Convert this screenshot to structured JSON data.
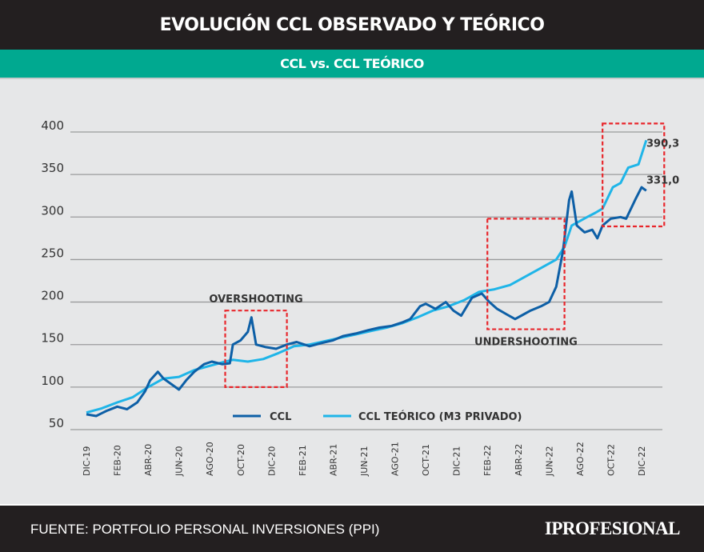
{
  "header": {
    "title": "EVOLUCIÓN CCL OBSERVADO Y TEÓRICO",
    "subtitle": "CCL vs. CCL TEÓRICO"
  },
  "footer": {
    "source": "FUENTE: PORTFOLIO PERSONAL INVERSIONES (PPI)",
    "logo": "IPROFESIONAL"
  },
  "chart_data": {
    "type": "line",
    "title": "CCL vs. CCL TEÓRICO",
    "xlabel": "",
    "ylabel": "",
    "ylim": [
      50,
      400
    ],
    "yticks": [
      "400",
      "350",
      "300",
      "250",
      "200",
      "150",
      "100",
      "50"
    ],
    "xticks": [
      "DIC-19",
      "FEB-20",
      "ABR-20",
      "JUN-20",
      "AGO-20",
      "OCT-20",
      "DIC-20",
      "FEB-21",
      "ABR-21",
      "JUN-21",
      "AGO-21",
      "OCT-21",
      "DIC-21",
      "FEB-22",
      "ABR-22",
      "JUN-22",
      "AGO-22",
      "OCT-22",
      "DIC-22"
    ],
    "xrange": [
      "2019-12",
      "2022-12"
    ],
    "grid": true,
    "legend": "bottom-center",
    "series": [
      {
        "name": "CCL",
        "color": "#0d5fa6",
        "x": [
          "2019-12-01",
          "2019-12-20",
          "2020-01-10",
          "2020-02-01",
          "2020-02-20",
          "2020-03-10",
          "2020-03-25",
          "2020-04-05",
          "2020-04-20",
          "2020-05-01",
          "2020-05-15",
          "2020-06-01",
          "2020-06-15",
          "2020-07-01",
          "2020-07-20",
          "2020-08-05",
          "2020-08-25",
          "2020-09-10",
          "2020-09-16",
          "2020-10-01",
          "2020-10-15",
          "2020-10-22",
          "2020-11-01",
          "2020-11-20",
          "2020-12-10",
          "2021-01-01",
          "2021-01-20",
          "2021-02-15",
          "2021-03-10",
          "2021-04-01",
          "2021-04-20",
          "2021-05-15",
          "2021-06-10",
          "2021-07-01",
          "2021-07-25",
          "2021-08-15",
          "2021-09-01",
          "2021-09-20",
          "2021-10-01",
          "2021-10-20",
          "2021-11-10",
          "2021-11-25",
          "2021-12-10",
          "2022-01-01",
          "2022-01-20",
          "2022-02-05",
          "2022-02-20",
          "2022-03-10",
          "2022-03-25",
          "2022-04-10",
          "2022-04-25",
          "2022-05-15",
          "2022-06-01",
          "2022-06-15",
          "2022-06-28",
          "2022-07-10",
          "2022-07-15",
          "2022-07-25",
          "2022-08-10",
          "2022-08-25",
          "2022-09-05",
          "2022-09-15",
          "2022-10-01",
          "2022-10-20",
          "2022-11-01",
          "2022-11-20",
          "2022-12-01",
          "2022-12-10"
        ],
        "values": [
          68,
          66,
          72,
          77,
          74,
          82,
          95,
          108,
          118,
          110,
          104,
          97,
          108,
          118,
          127,
          130,
          127,
          128,
          150,
          155,
          165,
          182,
          150,
          147,
          145,
          150,
          153,
          148,
          152,
          155,
          160,
          163,
          167,
          170,
          172,
          176,
          180,
          195,
          198,
          192,
          200,
          190,
          184,
          205,
          210,
          200,
          192,
          185,
          180,
          185,
          190,
          195,
          200,
          218,
          260,
          320,
          330,
          290,
          282,
          285,
          275,
          290,
          298,
          300,
          298,
          322,
          335,
          331
        ]
      },
      {
        "name": "CCL TEÓRICO (M3 PRIVADO)",
        "color": "#1fb5e8",
        "x": [
          "2019-12-01",
          "2020-01-01",
          "2020-02-01",
          "2020-03-01",
          "2020-04-01",
          "2020-05-01",
          "2020-06-01",
          "2020-07-01",
          "2020-08-01",
          "2020-09-01",
          "2020-09-16",
          "2020-10-15",
          "2020-11-15",
          "2020-12-15",
          "2021-01-15",
          "2021-02-15",
          "2021-03-15",
          "2021-04-15",
          "2021-05-15",
          "2021-06-15",
          "2021-07-15",
          "2021-08-15",
          "2021-09-15",
          "2021-10-15",
          "2021-11-15",
          "2021-12-15",
          "2022-01-15",
          "2022-02-15",
          "2022-03-15",
          "2022-04-15",
          "2022-05-15",
          "2022-06-15",
          "2022-07-01",
          "2022-07-15",
          "2022-08-15",
          "2022-09-01",
          "2022-09-15",
          "2022-10-05",
          "2022-10-20",
          "2022-11-05",
          "2022-11-25",
          "2022-12-10"
        ],
        "values": [
          70,
          75,
          82,
          88,
          100,
          110,
          112,
          120,
          125,
          130,
          132,
          130,
          133,
          140,
          148,
          150,
          154,
          158,
          162,
          166,
          170,
          175,
          182,
          190,
          195,
          202,
          212,
          215,
          220,
          230,
          240,
          250,
          265,
          290,
          300,
          305,
          310,
          335,
          340,
          358,
          362,
          390.3
        ]
      }
    ],
    "annotations": [
      {
        "text": "OVERSHOOTING",
        "box": {
          "x": [
            "2020-09-01",
            "2021-01-01"
          ],
          "y": [
            100,
            190
          ]
        }
      },
      {
        "text": "UNDERSHOOTING",
        "box": {
          "x": [
            "2022-02-01",
            "2022-07-01"
          ],
          "y": [
            168,
            298
          ]
        }
      },
      {
        "text": "",
        "box": {
          "x": [
            "2022-09-15",
            "2023-01-15"
          ],
          "y": [
            289,
            410
          ]
        }
      }
    ],
    "end_labels": [
      "390,3",
      "331,0"
    ]
  }
}
